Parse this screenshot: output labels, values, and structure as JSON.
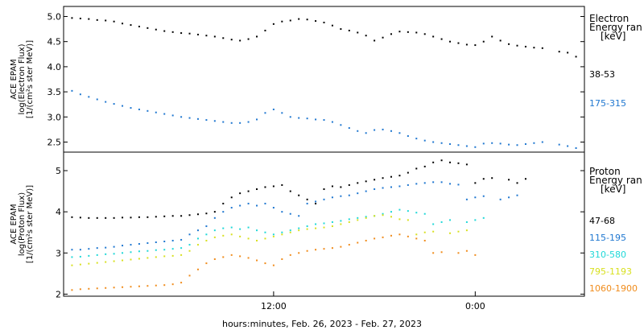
{
  "chart_data": [
    {
      "type": "scatter",
      "ylabel_lines": [
        "ACE EPAM",
        "log(Electron Flux)",
        "[1/(cm²s ster MeV)]"
      ],
      "yticks": [
        "2.5",
        "3.0",
        "3.5",
        "4.0",
        "4.5",
        "5.0"
      ],
      "ylim": [
        2.3,
        5.2
      ],
      "xlim": [
        -0.5,
        30.5
      ],
      "legend_title": [
        "Electron",
        "Energy ran",
        "[keV]"
      ],
      "series": [
        {
          "name": "38-53",
          "color": "#000000",
          "x": [
            0,
            0.5,
            1,
            1.5,
            2,
            2.5,
            3,
            3.5,
            4,
            4.5,
            5,
            5.5,
            6,
            6.5,
            7,
            7.5,
            8,
            8.5,
            9,
            9.5,
            10,
            10.5,
            11,
            11.5,
            12,
            12.5,
            13,
            13.5,
            14,
            14.5,
            15,
            15.5,
            16,
            16.5,
            17,
            17.5,
            18,
            18.5,
            19,
            19.5,
            20,
            20.5,
            21,
            21.5,
            22,
            22.5,
            23,
            23.5,
            24,
            24.5,
            25,
            25.5,
            26,
            26.5,
            27,
            27.5,
            28,
            28.5,
            29,
            29.5,
            30
          ],
          "y": [
            4.97,
            4.96,
            4.95,
            4.93,
            4.92,
            4.9,
            4.86,
            4.83,
            4.8,
            4.77,
            4.74,
            4.71,
            4.69,
            4.67,
            4.66,
            4.64,
            4.62,
            4.6,
            4.57,
            4.54,
            4.52,
            4.55,
            4.6,
            4.72,
            4.85,
            4.9,
            4.92,
            4.95,
            4.94,
            4.91,
            4.88,
            4.82,
            4.75,
            4.72,
            4.68,
            4.62,
            4.52,
            4.58,
            4.65,
            4.7,
            4.69,
            4.68,
            4.65,
            4.6,
            4.55,
            4.5,
            4.47,
            4.44,
            4.43,
            4.5,
            4.6,
            4.52,
            4.45,
            4.42,
            4.4,
            4.38,
            4.37,
            null,
            4.3,
            4.28,
            4.2
          ]
        },
        {
          "name": "175-315",
          "color": "#1f77d0",
          "x": [
            0,
            0.5,
            1,
            1.5,
            2,
            2.5,
            3,
            3.5,
            4,
            4.5,
            5,
            5.5,
            6,
            6.5,
            7,
            7.5,
            8,
            8.5,
            9,
            9.5,
            10,
            10.5,
            11,
            11.5,
            12,
            12.5,
            13,
            13.5,
            14,
            14.5,
            15,
            15.5,
            16,
            16.5,
            17,
            17.5,
            18,
            18.5,
            19,
            19.5,
            20,
            20.5,
            21,
            21.5,
            22,
            22.5,
            23,
            23.5,
            24,
            24.5,
            25,
            25.5,
            26,
            26.5,
            27,
            27.5,
            28,
            28.5,
            29,
            29.5,
            30
          ],
          "y": [
            3.52,
            3.45,
            3.4,
            3.35,
            3.3,
            3.26,
            3.22,
            3.18,
            3.15,
            3.12,
            3.09,
            3.06,
            3.03,
            3.0,
            2.98,
            2.96,
            2.94,
            2.92,
            2.9,
            2.88,
            2.88,
            2.9,
            2.95,
            3.08,
            3.15,
            3.08,
            3.0,
            2.98,
            2.97,
            2.95,
            2.94,
            2.9,
            2.84,
            2.78,
            2.72,
            2.68,
            2.74,
            2.75,
            2.72,
            2.68,
            2.62,
            2.57,
            2.53,
            2.5,
            2.48,
            2.46,
            2.44,
            2.42,
            2.4,
            2.47,
            2.48,
            2.47,
            2.45,
            2.44,
            2.46,
            2.48,
            2.5,
            null,
            2.45,
            2.42,
            2.38
          ]
        }
      ]
    },
    {
      "type": "scatter",
      "ylabel_lines": [
        "ACE EPAM",
        "log(Proton Flux)",
        "[1/(cm²s ster MeV)]"
      ],
      "yticks": [
        "2",
        "3",
        "4",
        "5"
      ],
      "ylim": [
        1.95,
        5.45
      ],
      "xlim": [
        -0.5,
        30.5
      ],
      "xticks": [
        {
          "x": 12,
          "label": "12:00"
        },
        {
          "x": 24,
          "label": "0:00"
        }
      ],
      "xlabel": "hours:minutes, Feb. 26, 2023 - Feb. 27, 2023",
      "legend_title": [
        "Proton",
        "Energy ran",
        "[keV]"
      ],
      "series": [
        {
          "name": "47-68",
          "color": "#000000",
          "x": [
            0,
            0.5,
            1,
            1.5,
            2,
            2.5,
            3,
            3.5,
            4,
            4.5,
            5,
            5.5,
            6,
            6.5,
            7,
            7.5,
            8,
            8.5,
            9,
            9.5,
            10,
            10.5,
            11,
            11.5,
            12,
            12.5,
            13,
            13.5,
            14,
            14.5,
            15,
            15.5,
            16,
            16.5,
            17,
            17.5,
            18,
            18.5,
            19,
            19.5,
            20,
            20.5,
            21,
            21.5,
            22,
            22.5,
            23,
            23.5,
            24,
            24.5,
            25,
            25.5,
            26,
            26.5,
            27,
            27.5,
            28,
            28.5,
            29,
            29.5,
            30
          ],
          "y": [
            3.87,
            3.86,
            3.85,
            3.85,
            3.85,
            3.85,
            3.86,
            3.86,
            3.87,
            3.87,
            3.88,
            3.89,
            3.9,
            3.9,
            3.92,
            3.94,
            3.96,
            4.0,
            4.2,
            4.35,
            4.45,
            4.5,
            4.55,
            4.6,
            4.62,
            4.65,
            4.5,
            4.4,
            4.3,
            4.2,
            4.55,
            4.62,
            4.6,
            4.65,
            4.7,
            4.74,
            4.78,
            4.82,
            4.85,
            4.88,
            4.95,
            5.05,
            5.1,
            5.2,
            5.25,
            5.2,
            5.18,
            5.15,
            4.7,
            4.8,
            4.82,
            null,
            4.78,
            4.7,
            4.8,
            null,
            null,
            null,
            null,
            null,
            null
          ]
        },
        {
          "name": "115-195",
          "color": "#1f77d0",
          "x": [
            0,
            0.5,
            1,
            1.5,
            2,
            2.5,
            3,
            3.5,
            4,
            4.5,
            5,
            5.5,
            6,
            6.5,
            7,
            7.5,
            8,
            8.5,
            9,
            9.5,
            10,
            10.5,
            11,
            11.5,
            12,
            12.5,
            13,
            13.5,
            14,
            14.5,
            15,
            15.5,
            16,
            16.5,
            17,
            17.5,
            18,
            18.5,
            19,
            19.5,
            20,
            20.5,
            21,
            21.5,
            22,
            22.5,
            23,
            23.5,
            24,
            24.5,
            25,
            25.5,
            26,
            26.5,
            27,
            27.5,
            28
          ],
          "y": [
            3.08,
            3.08,
            3.1,
            3.12,
            3.13,
            3.15,
            3.18,
            3.2,
            3.22,
            3.24,
            3.26,
            3.28,
            3.3,
            3.32,
            3.45,
            3.55,
            3.65,
            3.85,
            4.0,
            4.1,
            4.15,
            4.2,
            4.15,
            4.2,
            4.1,
            4.0,
            3.95,
            3.9,
            4.2,
            4.25,
            4.3,
            4.35,
            4.38,
            4.4,
            4.45,
            4.5,
            4.55,
            4.58,
            4.6,
            4.62,
            4.65,
            4.68,
            4.7,
            4.72,
            4.72,
            4.68,
            4.66,
            4.3,
            4.35,
            4.38,
            null,
            4.3,
            4.35,
            4.4,
            null,
            null,
            null
          ]
        },
        {
          "name": "310-580",
          "color": "#20d8d8",
          "x": [
            0,
            0.5,
            1,
            1.5,
            2,
            2.5,
            3,
            3.5,
            4,
            4.5,
            5,
            5.5,
            6,
            6.5,
            7,
            7.5,
            8,
            8.5,
            9,
            9.5,
            10,
            10.5,
            11,
            11.5,
            12,
            12.5,
            13,
            13.5,
            14,
            14.5,
            15,
            15.5,
            16,
            16.5,
            17,
            17.5,
            18,
            18.5,
            19,
            19.5,
            20,
            20.5,
            21,
            21.5,
            22,
            22.5,
            23,
            23.5,
            24,
            24.5,
            25,
            25.5,
            26,
            26.5,
            27
          ],
          "y": [
            2.9,
            2.91,
            2.93,
            2.95,
            2.97,
            2.98,
            3.0,
            3.02,
            3.04,
            3.05,
            3.07,
            3.08,
            3.1,
            3.12,
            3.2,
            3.35,
            3.45,
            3.55,
            3.6,
            3.62,
            3.58,
            3.62,
            3.55,
            3.5,
            3.45,
            3.5,
            3.55,
            3.6,
            3.65,
            3.7,
            3.72,
            3.75,
            3.78,
            3.82,
            3.85,
            3.88,
            3.9,
            3.95,
            4.0,
            4.05,
            4.02,
            3.98,
            3.95,
            3.7,
            3.75,
            3.8,
            null,
            3.75,
            3.8,
            3.85,
            null,
            null,
            null,
            null,
            null
          ]
        },
        {
          "name": "795-1193",
          "color": "#d8e020",
          "x": [
            0,
            0.5,
            1,
            1.5,
            2,
            2.5,
            3,
            3.5,
            4,
            4.5,
            5,
            5.5,
            6,
            6.5,
            7,
            7.5,
            8,
            8.5,
            9,
            9.5,
            10,
            10.5,
            11,
            11.5,
            12,
            12.5,
            13,
            13.5,
            14,
            14.5,
            15,
            15.5,
            16,
            16.5,
            17,
            17.5,
            18,
            18.5,
            19,
            19.5,
            20,
            20.5,
            21,
            21.5,
            22,
            22.5,
            23,
            23.5,
            24
          ],
          "y": [
            2.7,
            2.72,
            2.74,
            2.76,
            2.78,
            2.8,
            2.82,
            2.84,
            2.86,
            2.88,
            2.9,
            2.92,
            2.93,
            2.95,
            3.05,
            3.2,
            3.3,
            3.38,
            3.42,
            3.45,
            3.4,
            3.35,
            3.3,
            3.35,
            3.4,
            3.45,
            3.5,
            3.55,
            3.58,
            3.6,
            3.62,
            3.65,
            3.7,
            3.75,
            3.8,
            3.85,
            3.9,
            3.92,
            3.88,
            3.82,
            3.8,
            3.45,
            3.5,
            3.52,
            null,
            3.48,
            3.52,
            3.55,
            null
          ]
        },
        {
          "name": "1060-1900",
          "color": "#f08c1c",
          "x": [
            0,
            0.5,
            1,
            1.5,
            2,
            2.5,
            3,
            3.5,
            4,
            4.5,
            5,
            5.5,
            6,
            6.5,
            7,
            7.5,
            8,
            8.5,
            9,
            9.5,
            10,
            10.5,
            11,
            11.5,
            12,
            12.5,
            13,
            13.5,
            14,
            14.5,
            15,
            15.5,
            16,
            16.5,
            17,
            17.5,
            18,
            18.5,
            19,
            19.5,
            20,
            20.5,
            21,
            21.5,
            22,
            22.5,
            23,
            23.5,
            24
          ],
          "y": [
            2.1,
            2.12,
            2.13,
            2.14,
            2.15,
            2.16,
            2.17,
            2.18,
            2.19,
            2.2,
            2.21,
            2.22,
            2.24,
            2.28,
            2.45,
            2.6,
            2.75,
            2.85,
            2.9,
            2.95,
            2.92,
            2.88,
            2.82,
            2.75,
            2.7,
            2.85,
            2.95,
            3.0,
            3.05,
            3.08,
            3.1,
            3.12,
            3.15,
            3.2,
            3.25,
            3.3,
            3.35,
            3.38,
            3.42,
            3.45,
            3.4,
            3.35,
            3.3,
            3.0,
            3.02,
            null,
            3.0,
            3.05,
            2.95
          ]
        }
      ]
    }
  ]
}
